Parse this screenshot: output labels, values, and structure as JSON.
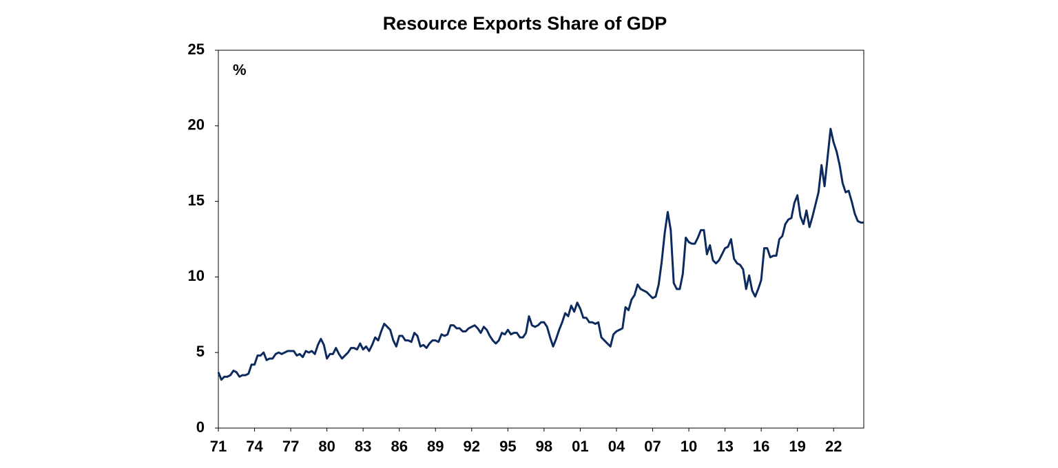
{
  "chart_data": {
    "type": "line",
    "title": "Resource Exports Share of GDP",
    "annotation": "%",
    "color": "#0d2a5e",
    "x": [
      1971,
      1971.25,
      1971.5,
      1971.75,
      1972,
      1972.25,
      1972.5,
      1972.75,
      1973,
      1973.25,
      1973.5,
      1973.75,
      1974,
      1974.25,
      1974.5,
      1974.75,
      1975,
      1975.25,
      1975.5,
      1975.75,
      1976,
      1976.25,
      1976.5,
      1976.75,
      1977,
      1977.25,
      1977.5,
      1977.75,
      1978,
      1978.25,
      1978.5,
      1978.75,
      1979,
      1979.25,
      1979.5,
      1979.75,
      1980,
      1980.25,
      1980.5,
      1980.75,
      1981,
      1981.25,
      1981.5,
      1981.75,
      1982,
      1982.25,
      1982.5,
      1982.75,
      1983,
      1983.25,
      1983.5,
      1983.75,
      1984,
      1984.25,
      1984.5,
      1984.75,
      1985,
      1985.25,
      1985.5,
      1985.75,
      1986,
      1986.25,
      1986.5,
      1986.75,
      1987,
      1987.25,
      1987.5,
      1987.75,
      1988,
      1988.25,
      1988.5,
      1988.75,
      1989,
      1989.25,
      1989.5,
      1989.75,
      1990,
      1990.25,
      1990.5,
      1990.75,
      1991,
      1991.25,
      1991.5,
      1991.75,
      1992,
      1992.25,
      1992.5,
      1992.75,
      1993,
      1993.25,
      1993.5,
      1993.75,
      1994,
      1994.25,
      1994.5,
      1994.75,
      1995,
      1995.25,
      1995.5,
      1995.75,
      1996,
      1996.25,
      1996.5,
      1996.75,
      1997,
      1997.25,
      1997.5,
      1997.75,
      1998,
      1998.25,
      1998.5,
      1998.75,
      1999,
      1999.25,
      1999.5,
      1999.75,
      2000,
      2000.25,
      2000.5,
      2000.75,
      2001,
      2001.25,
      2001.5,
      2001.75,
      2002,
      2002.25,
      2002.5,
      2002.75,
      2003,
      2003.25,
      2003.5,
      2003.75,
      2004,
      2004.25,
      2004.5,
      2004.75,
      2005,
      2005.25,
      2005.5,
      2005.75,
      2006,
      2006.25,
      2006.5,
      2006.75,
      2007,
      2007.25,
      2007.5,
      2007.75,
      2008,
      2008.25,
      2008.5,
      2008.75,
      2009,
      2009.25,
      2009.5,
      2009.75,
      2010,
      2010.25,
      2010.5,
      2010.75,
      2011,
      2011.25,
      2011.5,
      2011.75,
      2012,
      2012.25,
      2012.5,
      2012.75,
      2013,
      2013.25,
      2013.5,
      2013.75,
      2014,
      2014.25,
      2014.5,
      2014.75,
      2015,
      2015.25,
      2015.5,
      2015.75,
      2016,
      2016.25,
      2016.5,
      2016.75,
      2017,
      2017.25,
      2017.5,
      2017.75,
      2018,
      2018.25,
      2018.5,
      2018.75,
      2019,
      2019.25,
      2019.5,
      2019.75,
      2020,
      2020.25,
      2020.5,
      2020.75,
      2021,
      2021.25,
      2021.5,
      2021.75,
      2022,
      2022.25,
      2022.5,
      2022.75,
      2023,
      2023.25,
      2023.5,
      2023.75,
      2024,
      2024.25,
      2024.5
    ],
    "values": [
      3.7,
      3.2,
      3.4,
      3.4,
      3.5,
      3.8,
      3.7,
      3.4,
      3.5,
      3.5,
      3.6,
      4.2,
      4.2,
      4.8,
      4.8,
      5.0,
      4.5,
      4.6,
      4.6,
      4.9,
      5.0,
      4.9,
      5.0,
      5.1,
      5.1,
      5.1,
      4.8,
      4.9,
      4.7,
      5.1,
      5.0,
      5.1,
      4.9,
      5.5,
      5.9,
      5.5,
      4.6,
      4.9,
      4.9,
      5.3,
      4.9,
      4.6,
      4.8,
      5.0,
      5.3,
      5.3,
      5.2,
      5.6,
      5.2,
      5.4,
      5.1,
      5.5,
      6.0,
      5.8,
      6.4,
      6.9,
      6.7,
      6.5,
      5.8,
      5.4,
      6.1,
      6.1,
      5.8,
      5.8,
      5.7,
      6.3,
      6.1,
      5.4,
      5.5,
      5.3,
      5.6,
      5.8,
      5.8,
      5.7,
      6.2,
      6.1,
      6.2,
      6.8,
      6.8,
      6.6,
      6.6,
      6.4,
      6.4,
      6.6,
      6.7,
      6.8,
      6.6,
      6.3,
      6.7,
      6.5,
      6.1,
      5.8,
      5.6,
      5.8,
      6.3,
      6.2,
      6.5,
      6.2,
      6.3,
      6.3,
      6.0,
      6.0,
      6.3,
      7.4,
      6.8,
      6.7,
      6.8,
      7.0,
      7.0,
      6.7,
      6.0,
      5.4,
      5.9,
      6.5,
      7.0,
      7.6,
      7.4,
      8.1,
      7.7,
      8.3,
      7.9,
      7.3,
      7.3,
      7.0,
      7.0,
      6.9,
      7.0,
      6.0,
      5.8,
      5.6,
      5.4,
      6.2,
      6.4,
      6.5,
      6.6,
      8.0,
      7.8,
      8.5,
      8.8,
      9.5,
      9.2,
      9.1,
      9.0,
      8.8,
      8.6,
      8.7,
      9.5,
      11.0,
      12.9,
      14.3,
      13.1,
      9.6,
      9.2,
      9.2,
      10.2,
      12.6,
      12.3,
      12.2,
      12.2,
      12.6,
      13.1,
      13.1,
      11.5,
      12.1,
      11.1,
      10.9,
      11.1,
      11.5,
      11.9,
      12.0,
      12.5,
      11.2,
      10.9,
      10.8,
      10.5,
      9.2,
      10.1,
      9.1,
      8.7,
      9.2,
      9.8,
      11.9,
      11.9,
      11.3,
      11.4,
      11.4,
      12.5,
      12.7,
      13.5,
      13.8,
      13.9,
      14.9,
      15.4,
      14.0,
      13.5,
      14.4,
      13.3,
      14.0,
      14.8,
      15.6,
      17.4,
      16.0,
      17.9,
      19.8,
      18.9,
      18.3,
      17.4,
      16.2,
      15.6,
      15.7,
      15.0,
      14.2,
      13.7,
      13.6,
      13.6
    ],
    "xlim": [
      1971,
      2024.5
    ],
    "xticks": [
      {
        "value": 1971,
        "label": "71"
      },
      {
        "value": 1974,
        "label": "74"
      },
      {
        "value": 1977,
        "label": "77"
      },
      {
        "value": 1980,
        "label": "80"
      },
      {
        "value": 1983,
        "label": "83"
      },
      {
        "value": 1986,
        "label": "86"
      },
      {
        "value": 1989,
        "label": "89"
      },
      {
        "value": 1992,
        "label": "92"
      },
      {
        "value": 1995,
        "label": "95"
      },
      {
        "value": 1998,
        "label": "98"
      },
      {
        "value": 2001,
        "label": "01"
      },
      {
        "value": 2004,
        "label": "04"
      },
      {
        "value": 2007,
        "label": "07"
      },
      {
        "value": 2010,
        "label": "10"
      },
      {
        "value": 2013,
        "label": "13"
      },
      {
        "value": 2016,
        "label": "16"
      },
      {
        "value": 2019,
        "label": "19"
      },
      {
        "value": 2022,
        "label": "22"
      }
    ],
    "ylim": [
      0,
      25
    ],
    "yticks": [
      0,
      5,
      10,
      15,
      20,
      25
    ],
    "grid": false
  }
}
